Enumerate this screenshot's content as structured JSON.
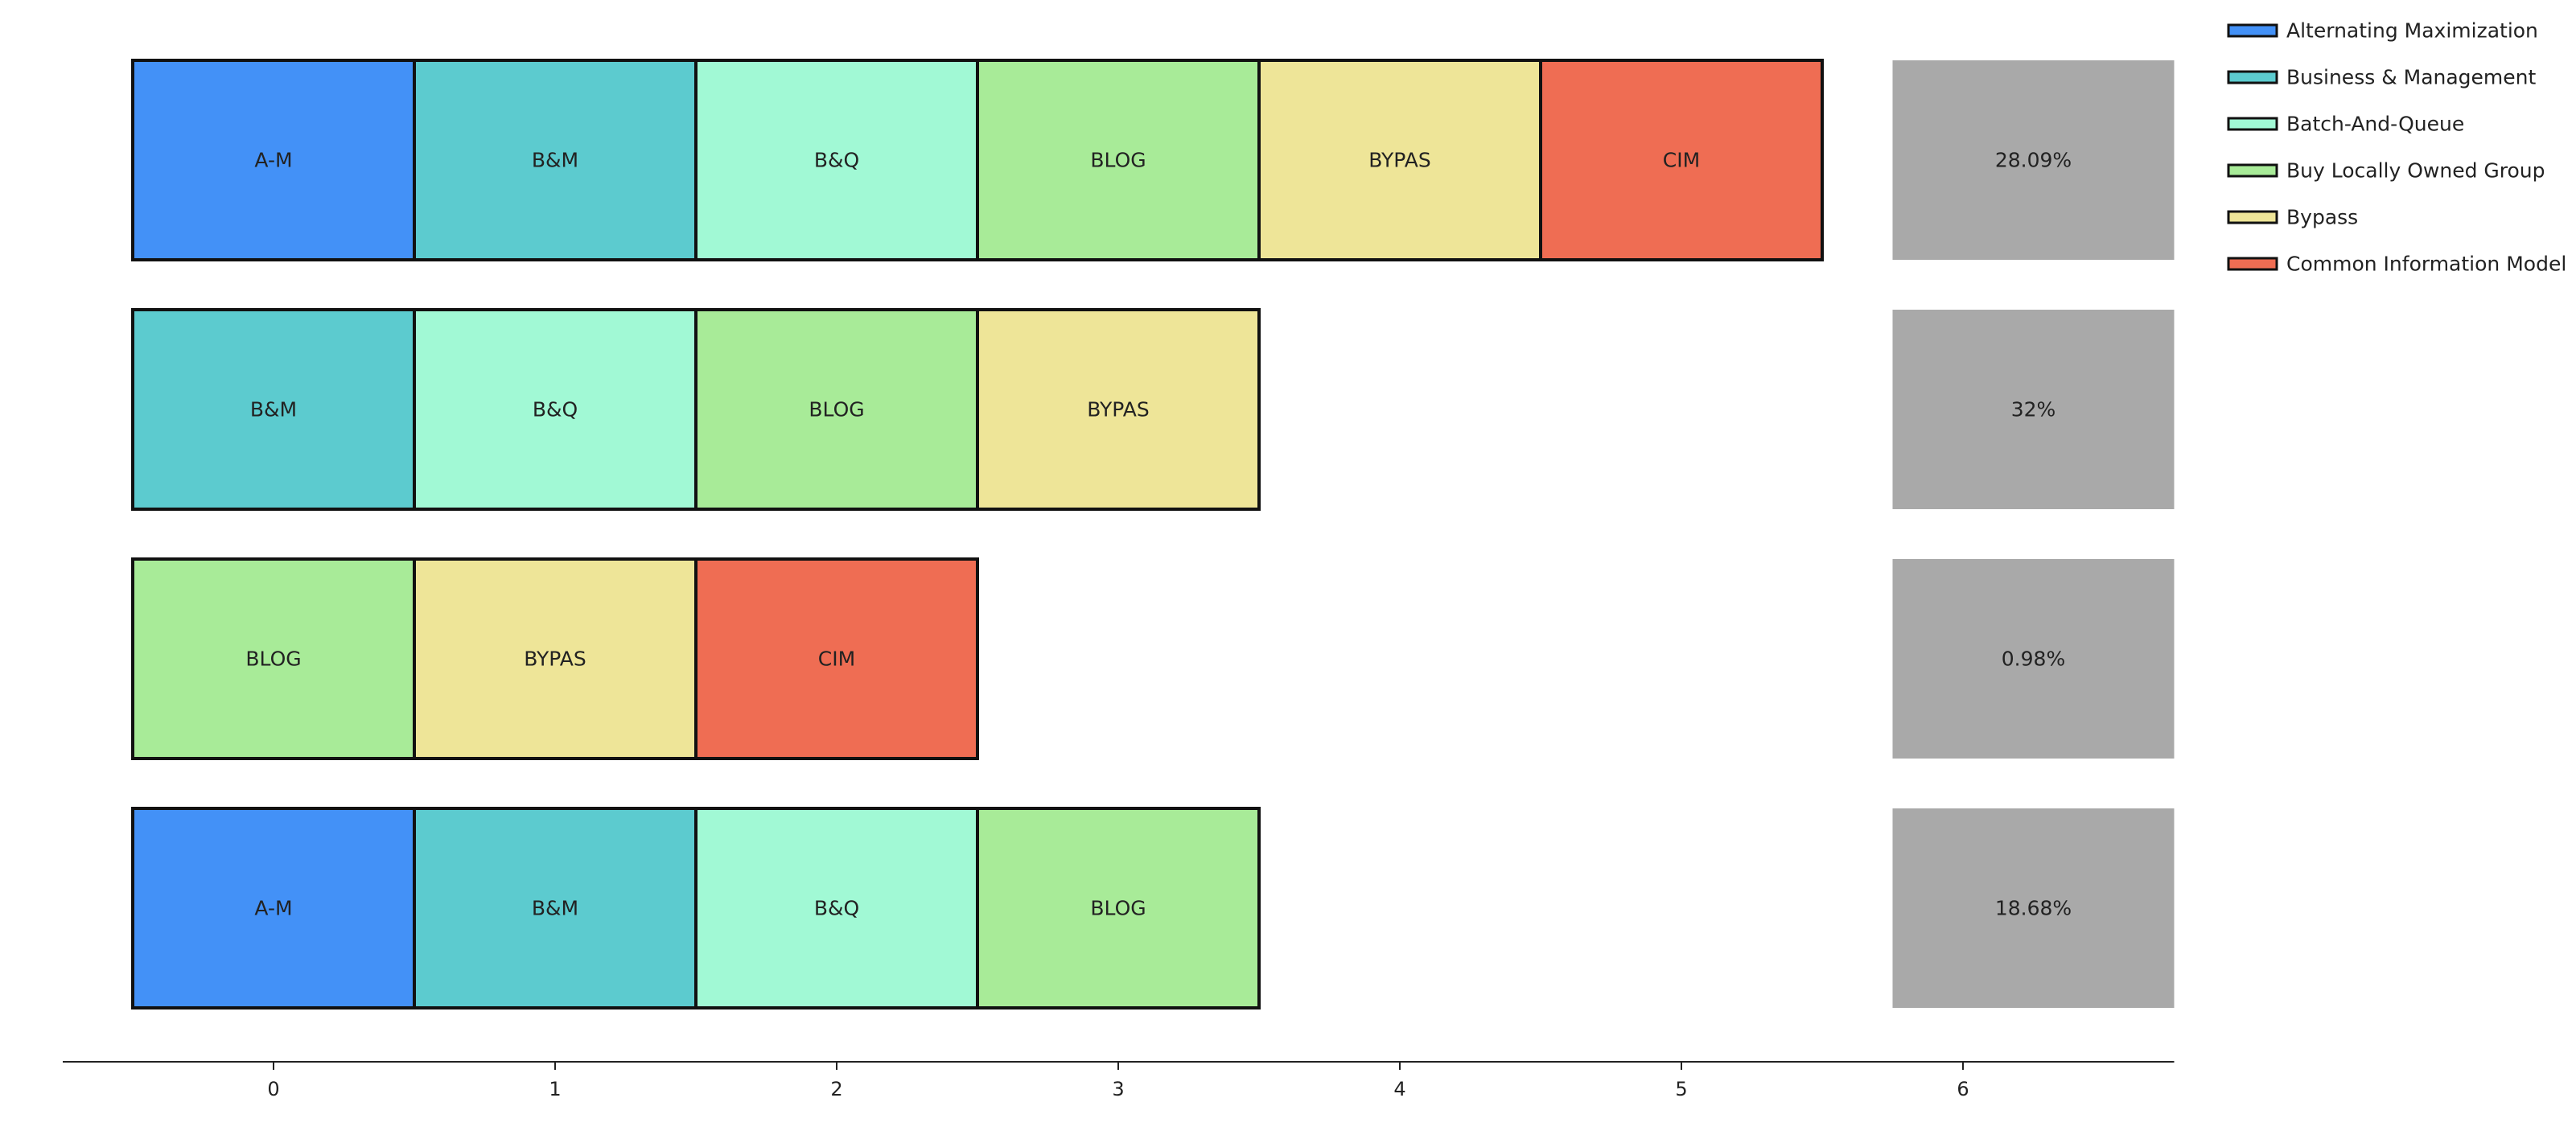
{
  "chart_data": {
    "type": "bar",
    "title": "",
    "xlabel": "",
    "ylabel": "",
    "xlim": [
      -0.75,
      6.75
    ],
    "x_ticks": [
      0,
      1,
      2,
      3,
      4,
      5,
      6
    ],
    "grid": false,
    "legend_placement": "top-right",
    "share_box_color": "#a9a9a9",
    "categories": [
      {
        "abbr": "A-M",
        "name": "Alternating Maximization",
        "color": "#4391f7"
      },
      {
        "abbr": "B&M",
        "name": "Business & Management",
        "color": "#5ccbcf"
      },
      {
        "abbr": "B&Q",
        "name": "Batch-And-Queue",
        "color": "#a1f9d5"
      },
      {
        "abbr": "BLOG",
        "name": "Buy Locally Owned Group",
        "color": "#a8eb98"
      },
      {
        "abbr": "BYPAS",
        "name": "Bypass",
        "color": "#eee598"
      },
      {
        "abbr": "CIM",
        "name": "Common Information Model",
        "color": "#ef6d53"
      }
    ],
    "rows": [
      {
        "items": [
          "A-M",
          "B&M",
          "B&Q",
          "BLOG",
          "BYPAS",
          "CIM"
        ],
        "share": "28.09%"
      },
      {
        "items": [
          "B&M",
          "B&Q",
          "BLOG",
          "BYPAS"
        ],
        "share": "32%"
      },
      {
        "items": [
          "BLOG",
          "BYPAS",
          "CIM"
        ],
        "share": "0.98%"
      },
      {
        "items": [
          "A-M",
          "B&M",
          "B&Q",
          "BLOG"
        ],
        "share": "18.68%"
      }
    ]
  }
}
